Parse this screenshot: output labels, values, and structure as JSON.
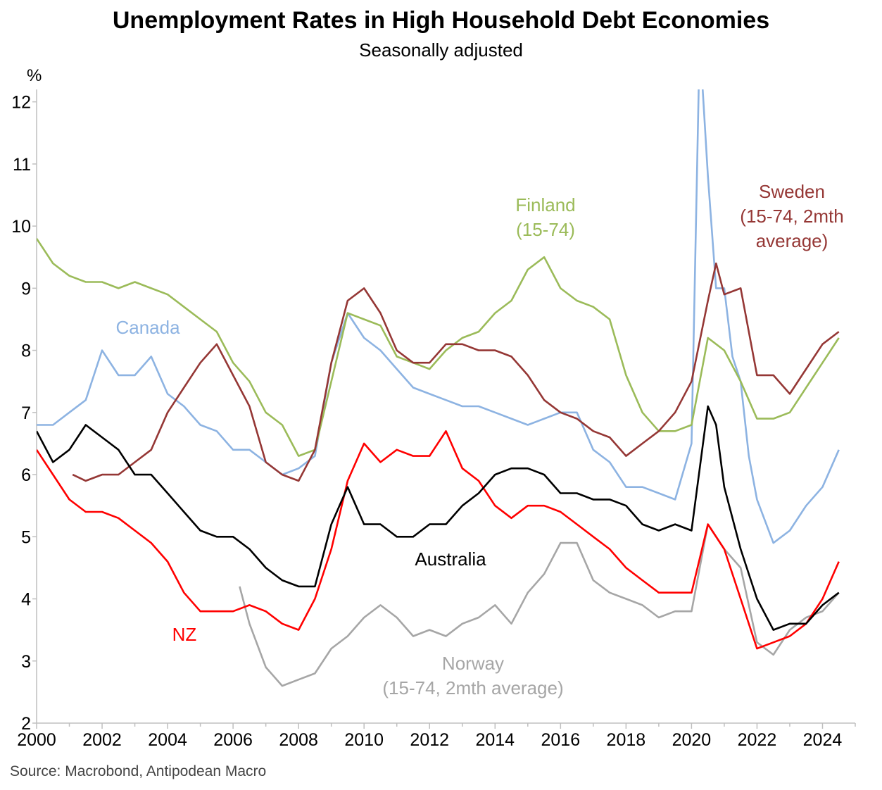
{
  "chart_data": {
    "type": "line",
    "title": "Unemployment Rates in High Household Debt Economies",
    "subtitle": "Seasonally adjusted",
    "ylabel": "%",
    "xlim": [
      2000,
      2025
    ],
    "ylim": [
      2,
      12.2
    ],
    "x_ticks": [
      "2000",
      "2002",
      "2004",
      "2006",
      "2008",
      "2010",
      "2012",
      "2014",
      "2016",
      "2018",
      "2020",
      "2022",
      "2024"
    ],
    "y_ticks": [
      "2",
      "3",
      "4",
      "5",
      "6",
      "7",
      "8",
      "9",
      "10",
      "11",
      "12"
    ],
    "grid": false,
    "source": "Source: Macrobond, Antipodean Macro",
    "series": [
      {
        "name": "Canada",
        "label_lines": [
          "Canada"
        ],
        "color": "#8db3e2",
        "points": [
          [
            2000.0,
            6.8
          ],
          [
            2000.5,
            6.8
          ],
          [
            2001.0,
            7.0
          ],
          [
            2001.5,
            7.2
          ],
          [
            2002.0,
            8.0
          ],
          [
            2002.5,
            7.6
          ],
          [
            2003.0,
            7.6
          ],
          [
            2003.5,
            7.9
          ],
          [
            2004.0,
            7.3
          ],
          [
            2004.5,
            7.1
          ],
          [
            2005.0,
            6.8
          ],
          [
            2005.5,
            6.7
          ],
          [
            2006.0,
            6.4
          ],
          [
            2006.5,
            6.4
          ],
          [
            2007.0,
            6.2
          ],
          [
            2007.5,
            6.0
          ],
          [
            2008.0,
            6.1
          ],
          [
            2008.5,
            6.3
          ],
          [
            2009.0,
            7.8
          ],
          [
            2009.5,
            8.6
          ],
          [
            2010.0,
            8.2
          ],
          [
            2010.5,
            8.0
          ],
          [
            2011.0,
            7.7
          ],
          [
            2011.5,
            7.4
          ],
          [
            2012.0,
            7.3
          ],
          [
            2012.5,
            7.2
          ],
          [
            2013.0,
            7.1
          ],
          [
            2013.5,
            7.1
          ],
          [
            2014.0,
            7.0
          ],
          [
            2014.5,
            6.9
          ],
          [
            2015.0,
            6.8
          ],
          [
            2015.5,
            6.9
          ],
          [
            2016.0,
            7.0
          ],
          [
            2016.5,
            7.0
          ],
          [
            2017.0,
            6.4
          ],
          [
            2017.5,
            6.2
          ],
          [
            2018.0,
            5.8
          ],
          [
            2018.5,
            5.8
          ],
          [
            2019.0,
            5.7
          ],
          [
            2019.5,
            5.6
          ],
          [
            2020.0,
            6.5
          ],
          [
            2020.25,
            13.0
          ],
          [
            2020.5,
            10.8
          ],
          [
            2020.75,
            9.0
          ],
          [
            2021.0,
            9.0
          ],
          [
            2021.25,
            7.9
          ],
          [
            2021.5,
            7.5
          ],
          [
            2021.75,
            6.3
          ],
          [
            2022.0,
            5.6
          ],
          [
            2022.5,
            4.9
          ],
          [
            2023.0,
            5.1
          ],
          [
            2023.5,
            5.5
          ],
          [
            2024.0,
            5.8
          ],
          [
            2024.5,
            6.4
          ]
        ]
      },
      {
        "name": "Finland",
        "label_lines": [
          "Finland",
          "(15-74)"
        ],
        "color": "#9bbb59",
        "points": [
          [
            2000.0,
            9.8
          ],
          [
            2000.5,
            9.4
          ],
          [
            2001.0,
            9.2
          ],
          [
            2001.5,
            9.1
          ],
          [
            2002.0,
            9.1
          ],
          [
            2002.5,
            9.0
          ],
          [
            2003.0,
            9.1
          ],
          [
            2003.5,
            9.0
          ],
          [
            2004.0,
            8.9
          ],
          [
            2004.5,
            8.7
          ],
          [
            2005.0,
            8.5
          ],
          [
            2005.5,
            8.3
          ],
          [
            2006.0,
            7.8
          ],
          [
            2006.5,
            7.5
          ],
          [
            2007.0,
            7.0
          ],
          [
            2007.5,
            6.8
          ],
          [
            2008.0,
            6.3
          ],
          [
            2008.5,
            6.4
          ],
          [
            2009.0,
            7.5
          ],
          [
            2009.5,
            8.6
          ],
          [
            2010.0,
            8.5
          ],
          [
            2010.5,
            8.4
          ],
          [
            2011.0,
            7.9
          ],
          [
            2011.5,
            7.8
          ],
          [
            2012.0,
            7.7
          ],
          [
            2012.5,
            8.0
          ],
          [
            2013.0,
            8.2
          ],
          [
            2013.5,
            8.3
          ],
          [
            2014.0,
            8.6
          ],
          [
            2014.5,
            8.8
          ],
          [
            2015.0,
            9.3
          ],
          [
            2015.5,
            9.5
          ],
          [
            2016.0,
            9.0
          ],
          [
            2016.5,
            8.8
          ],
          [
            2017.0,
            8.7
          ],
          [
            2017.5,
            8.5
          ],
          [
            2018.0,
            7.6
          ],
          [
            2018.5,
            7.0
          ],
          [
            2019.0,
            6.7
          ],
          [
            2019.5,
            6.7
          ],
          [
            2020.0,
            6.8
          ],
          [
            2020.5,
            8.2
          ],
          [
            2021.0,
            8.0
          ],
          [
            2021.5,
            7.5
          ],
          [
            2022.0,
            6.9
          ],
          [
            2022.5,
            6.9
          ],
          [
            2023.0,
            7.0
          ],
          [
            2023.5,
            7.4
          ],
          [
            2024.0,
            7.8
          ],
          [
            2024.5,
            8.2
          ]
        ]
      },
      {
        "name": "Sweden",
        "label_lines": [
          "Sweden",
          "(15-74, 2mth",
          "average)"
        ],
        "color": "#953735",
        "points": [
          [
            2001.1,
            6.0
          ],
          [
            2001.5,
            5.9
          ],
          [
            2002.0,
            6.0
          ],
          [
            2002.5,
            6.0
          ],
          [
            2003.0,
            6.2
          ],
          [
            2003.5,
            6.4
          ],
          [
            2004.0,
            7.0
          ],
          [
            2004.5,
            7.4
          ],
          [
            2005.0,
            7.8
          ],
          [
            2005.5,
            8.1
          ],
          [
            2006.0,
            7.6
          ],
          [
            2006.5,
            7.1
          ],
          [
            2007.0,
            6.2
          ],
          [
            2007.5,
            6.0
          ],
          [
            2008.0,
            5.9
          ],
          [
            2008.5,
            6.4
          ],
          [
            2009.0,
            7.8
          ],
          [
            2009.5,
            8.8
          ],
          [
            2010.0,
            9.0
          ],
          [
            2010.5,
            8.6
          ],
          [
            2011.0,
            8.0
          ],
          [
            2011.5,
            7.8
          ],
          [
            2012.0,
            7.8
          ],
          [
            2012.5,
            8.1
          ],
          [
            2013.0,
            8.1
          ],
          [
            2013.5,
            8.0
          ],
          [
            2014.0,
            8.0
          ],
          [
            2014.5,
            7.9
          ],
          [
            2015.0,
            7.6
          ],
          [
            2015.5,
            7.2
          ],
          [
            2016.0,
            7.0
          ],
          [
            2016.5,
            6.9
          ],
          [
            2017.0,
            6.7
          ],
          [
            2017.5,
            6.6
          ],
          [
            2018.0,
            6.3
          ],
          [
            2018.5,
            6.5
          ],
          [
            2019.0,
            6.7
          ],
          [
            2019.5,
            7.0
          ],
          [
            2020.0,
            7.5
          ],
          [
            2020.5,
            8.8
          ],
          [
            2020.75,
            9.4
          ],
          [
            2021.0,
            8.9
          ],
          [
            2021.5,
            9.0
          ],
          [
            2022.0,
            7.6
          ],
          [
            2022.5,
            7.6
          ],
          [
            2023.0,
            7.3
          ],
          [
            2023.5,
            7.7
          ],
          [
            2024.0,
            8.1
          ],
          [
            2024.5,
            8.3
          ]
        ]
      },
      {
        "name": "Australia",
        "label_lines": [
          "Australia"
        ],
        "color": "#000000",
        "points": [
          [
            2000.0,
            6.7
          ],
          [
            2000.5,
            6.2
          ],
          [
            2001.0,
            6.4
          ],
          [
            2001.5,
            6.8
          ],
          [
            2002.0,
            6.6
          ],
          [
            2002.5,
            6.4
          ],
          [
            2003.0,
            6.0
          ],
          [
            2003.5,
            6.0
          ],
          [
            2004.0,
            5.7
          ],
          [
            2004.5,
            5.4
          ],
          [
            2005.0,
            5.1
          ],
          [
            2005.5,
            5.0
          ],
          [
            2006.0,
            5.0
          ],
          [
            2006.5,
            4.8
          ],
          [
            2007.0,
            4.5
          ],
          [
            2007.5,
            4.3
          ],
          [
            2008.0,
            4.2
          ],
          [
            2008.5,
            4.2
          ],
          [
            2009.0,
            5.2
          ],
          [
            2009.5,
            5.8
          ],
          [
            2010.0,
            5.2
          ],
          [
            2010.5,
            5.2
          ],
          [
            2011.0,
            5.0
          ],
          [
            2011.5,
            5.0
          ],
          [
            2012.0,
            5.2
          ],
          [
            2012.5,
            5.2
          ],
          [
            2013.0,
            5.5
          ],
          [
            2013.5,
            5.7
          ],
          [
            2014.0,
            6.0
          ],
          [
            2014.5,
            6.1
          ],
          [
            2015.0,
            6.1
          ],
          [
            2015.5,
            6.0
          ],
          [
            2016.0,
            5.7
          ],
          [
            2016.5,
            5.7
          ],
          [
            2017.0,
            5.6
          ],
          [
            2017.5,
            5.6
          ],
          [
            2018.0,
            5.5
          ],
          [
            2018.5,
            5.2
          ],
          [
            2019.0,
            5.1
          ],
          [
            2019.5,
            5.2
          ],
          [
            2020.0,
            5.1
          ],
          [
            2020.5,
            7.1
          ],
          [
            2020.75,
            6.8
          ],
          [
            2021.0,
            5.8
          ],
          [
            2021.5,
            4.8
          ],
          [
            2022.0,
            4.0
          ],
          [
            2022.5,
            3.5
          ],
          [
            2023.0,
            3.6
          ],
          [
            2023.5,
            3.6
          ],
          [
            2024.0,
            3.9
          ],
          [
            2024.5,
            4.1
          ]
        ]
      },
      {
        "name": "NZ",
        "label_lines": [
          "NZ"
        ],
        "color": "#ff0000",
        "points": [
          [
            2000.0,
            6.4
          ],
          [
            2000.5,
            6.0
          ],
          [
            2001.0,
            5.6
          ],
          [
            2001.5,
            5.4
          ],
          [
            2002.0,
            5.4
          ],
          [
            2002.5,
            5.3
          ],
          [
            2003.0,
            5.1
          ],
          [
            2003.5,
            4.9
          ],
          [
            2004.0,
            4.6
          ],
          [
            2004.5,
            4.1
          ],
          [
            2005.0,
            3.8
          ],
          [
            2005.5,
            3.8
          ],
          [
            2006.0,
            3.8
          ],
          [
            2006.5,
            3.9
          ],
          [
            2007.0,
            3.8
          ],
          [
            2007.5,
            3.6
          ],
          [
            2008.0,
            3.5
          ],
          [
            2008.5,
            4.0
          ],
          [
            2009.0,
            4.8
          ],
          [
            2009.5,
            5.9
          ],
          [
            2010.0,
            6.5
          ],
          [
            2010.5,
            6.2
          ],
          [
            2011.0,
            6.4
          ],
          [
            2011.5,
            6.3
          ],
          [
            2012.0,
            6.3
          ],
          [
            2012.5,
            6.7
          ],
          [
            2013.0,
            6.1
          ],
          [
            2013.5,
            5.9
          ],
          [
            2014.0,
            5.5
          ],
          [
            2014.5,
            5.3
          ],
          [
            2015.0,
            5.5
          ],
          [
            2015.5,
            5.5
          ],
          [
            2016.0,
            5.4
          ],
          [
            2016.5,
            5.2
          ],
          [
            2017.0,
            5.0
          ],
          [
            2017.5,
            4.8
          ],
          [
            2018.0,
            4.5
          ],
          [
            2018.5,
            4.3
          ],
          [
            2019.0,
            4.1
          ],
          [
            2019.5,
            4.1
          ],
          [
            2020.0,
            4.1
          ],
          [
            2020.5,
            5.2
          ],
          [
            2021.0,
            4.8
          ],
          [
            2021.5,
            4.0
          ],
          [
            2022.0,
            3.2
          ],
          [
            2022.5,
            3.3
          ],
          [
            2023.0,
            3.4
          ],
          [
            2023.5,
            3.6
          ],
          [
            2024.0,
            4.0
          ],
          [
            2024.5,
            4.6
          ]
        ]
      },
      {
        "name": "Norway",
        "label_lines": [
          "Norway",
          "(15-74, 2mth average)"
        ],
        "color": "#a6a6a6",
        "points": [
          [
            2006.2,
            4.2
          ],
          [
            2006.5,
            3.6
          ],
          [
            2007.0,
            2.9
          ],
          [
            2007.5,
            2.6
          ],
          [
            2008.0,
            2.7
          ],
          [
            2008.5,
            2.8
          ],
          [
            2009.0,
            3.2
          ],
          [
            2009.5,
            3.4
          ],
          [
            2010.0,
            3.7
          ],
          [
            2010.5,
            3.9
          ],
          [
            2011.0,
            3.7
          ],
          [
            2011.5,
            3.4
          ],
          [
            2012.0,
            3.5
          ],
          [
            2012.5,
            3.4
          ],
          [
            2013.0,
            3.6
          ],
          [
            2013.5,
            3.7
          ],
          [
            2014.0,
            3.9
          ],
          [
            2014.5,
            3.6
          ],
          [
            2015.0,
            4.1
          ],
          [
            2015.5,
            4.4
          ],
          [
            2016.0,
            4.9
          ],
          [
            2016.5,
            4.9
          ],
          [
            2017.0,
            4.3
          ],
          [
            2017.5,
            4.1
          ],
          [
            2018.0,
            4.0
          ],
          [
            2018.5,
            3.9
          ],
          [
            2019.0,
            3.7
          ],
          [
            2019.5,
            3.8
          ],
          [
            2020.0,
            3.8
          ],
          [
            2020.5,
            5.2
          ],
          [
            2021.0,
            4.8
          ],
          [
            2021.5,
            4.5
          ],
          [
            2022.0,
            3.3
          ],
          [
            2022.5,
            3.1
          ],
          [
            2023.0,
            3.5
          ],
          [
            2023.5,
            3.7
          ],
          [
            2024.0,
            3.8
          ],
          [
            2024.5,
            4.1
          ]
        ]
      }
    ]
  }
}
